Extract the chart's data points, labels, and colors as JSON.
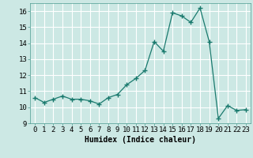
{
  "x": [
    0,
    1,
    2,
    3,
    4,
    5,
    6,
    7,
    8,
    9,
    10,
    11,
    12,
    13,
    14,
    15,
    16,
    17,
    18,
    19,
    20,
    21,
    22,
    23
  ],
  "y": [
    10.6,
    10.3,
    10.5,
    10.7,
    10.5,
    10.5,
    10.4,
    10.2,
    10.6,
    10.8,
    11.4,
    11.8,
    12.3,
    14.1,
    13.5,
    15.9,
    15.7,
    15.3,
    16.2,
    14.1,
    9.3,
    10.1,
    9.8,
    9.85
  ],
  "xlabel": "Humidex (Indice chaleur)",
  "ylim": [
    9,
    16.5
  ],
  "yticks": [
    9,
    10,
    11,
    12,
    13,
    14,
    15,
    16
  ],
  "xlim": [
    -0.5,
    23.5
  ],
  "xticks": [
    0,
    1,
    2,
    3,
    4,
    5,
    6,
    7,
    8,
    9,
    10,
    11,
    12,
    13,
    14,
    15,
    16,
    17,
    18,
    19,
    20,
    21,
    22,
    23
  ],
  "line_color": "#1a7a6e",
  "marker": "+",
  "marker_size": 4,
  "bg_color": "#cce8e4",
  "grid_color": "#ffffff",
  "label_fontsize": 7,
  "tick_fontsize": 6.5
}
